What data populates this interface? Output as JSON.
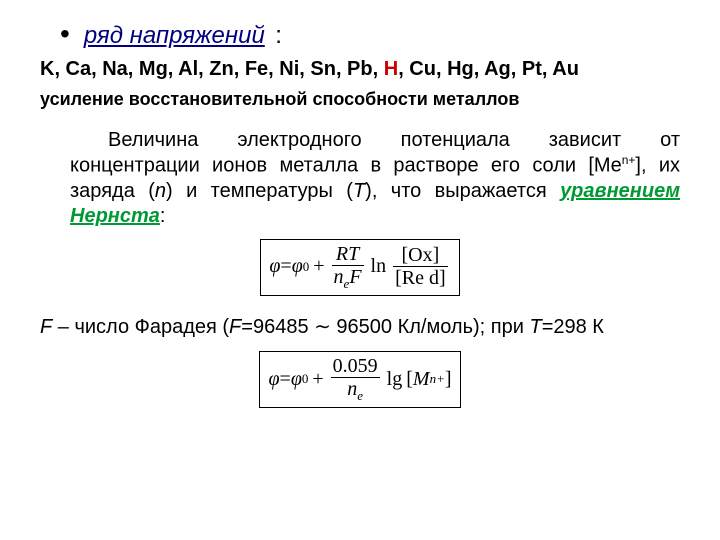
{
  "bullet": {
    "label": "ряд напряжений",
    "colon": ":"
  },
  "series_prefix": "K, Ca, Na, Mg, Al, Zn, Fe, Ni, Sn, Pb, ",
  "series_h": "H",
  "series_suffix": ", Cu, Hg, Ag, Pt, Au",
  "reinforce": "усиление восстановительной способности металлов",
  "paragraph": {
    "p1": "Величина электродного потенциала зависит от концентрации  ионов металла в растворе его соли [Me",
    "sup": "n+",
    "p2": "], их заряда (",
    "n": "n",
    "p3": ") и температуры (",
    "T": "T",
    "p4": "), что выражается ",
    "nernst": "уравнением Нернста",
    "colon": ":"
  },
  "formula1": {
    "phi": "φ",
    "eq": "=",
    "phi0": "φ",
    "sup0": "0",
    "plus": "+",
    "rt": "RT",
    "nef": "n",
    "e_sub": "e",
    "F": "F",
    "ln": "ln",
    "ox": "[Ox]",
    "red": "[Re d]"
  },
  "faraday": {
    "f": "F",
    "t1": " – число Фарадея (",
    "f2": "F",
    "t2": "=96485 ∼ 96500 Кл/моль); при ",
    "t3": "T",
    "t4": "=298 К"
  },
  "formula2": {
    "phi": "φ",
    "eq": "=",
    "phi0": "φ",
    "sup0": "0",
    "plus": "+",
    "num": "0.059",
    "n": "n",
    "e_sub": "e",
    "lg": "lg",
    "M": "M",
    "Msup": " n+",
    "close": "]"
  }
}
